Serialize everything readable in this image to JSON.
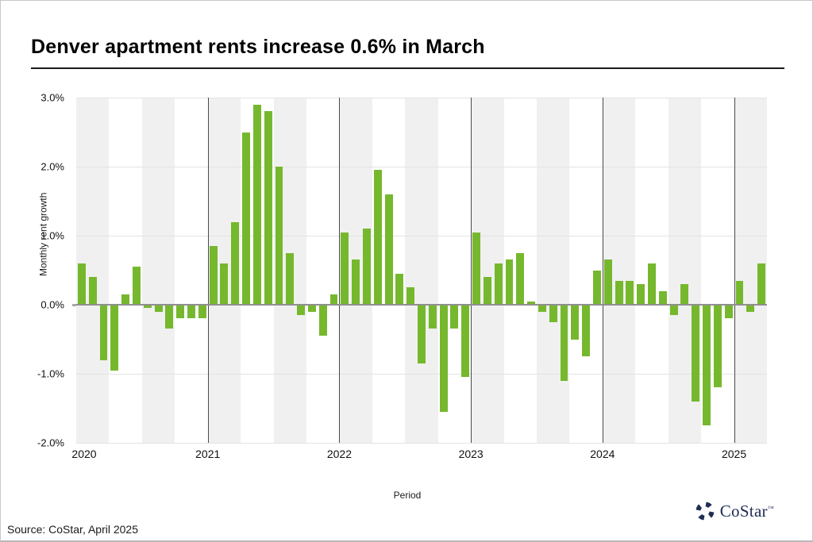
{
  "title": "Denver apartment rents increase 0.6% in March",
  "source": "Source: CoStar, April 2025",
  "logo": {
    "text": "CoStar",
    "tm": "™",
    "color": "#1f2d54"
  },
  "chart_data": {
    "type": "bar",
    "title": "Denver apartment rents increase 0.6% in March",
    "xlabel": "Period",
    "ylabel": "Monthly rent growth",
    "ylim": [
      -2.0,
      3.0
    ],
    "yticks": [
      3.0,
      2.0,
      1.0,
      0.0,
      -1.0,
      -2.0
    ],
    "ytick_labels": [
      "3.0%",
      "2.0%",
      "1.0%",
      "0.0%",
      "-1.0%",
      "-2.0%"
    ],
    "grid": "horizontal, light gray; alternating quarterly background stripes",
    "legend": "none",
    "bar_color": "#76b82d",
    "stripe_color": "#f0f0f0",
    "x_unit": "month",
    "x_start": "Jan 2020",
    "x_end": "Mar 2025",
    "year_tick_labels": [
      "2020",
      "2021",
      "2022",
      "2023",
      "2024",
      "2025"
    ],
    "series": [
      {
        "year": "2020",
        "monthly_rent_growth_pct": [
          0.6,
          0.4,
          -0.8,
          -0.95,
          0.15,
          0.55,
          -0.05,
          -0.1,
          -0.35,
          -0.2,
          -0.2,
          -0.2
        ]
      },
      {
        "year": "2021",
        "monthly_rent_growth_pct": [
          0.85,
          0.6,
          1.2,
          2.5,
          2.9,
          2.8,
          2.0,
          0.75,
          -0.15,
          -0.1,
          -0.45,
          0.15
        ]
      },
      {
        "year": "2022",
        "monthly_rent_growth_pct": [
          1.05,
          0.65,
          1.1,
          1.95,
          1.6,
          0.45,
          0.25,
          -0.85,
          -0.35,
          -1.55,
          -0.35,
          -1.05
        ]
      },
      {
        "year": "2023",
        "monthly_rent_growth_pct": [
          1.05,
          0.4,
          0.6,
          0.65,
          0.75,
          0.05,
          -0.1,
          -0.25,
          -1.1,
          -0.5,
          -0.75,
          0.5
        ]
      },
      {
        "year": "2024",
        "monthly_rent_growth_pct": [
          0.65,
          0.35,
          0.35,
          0.3,
          0.6,
          0.2,
          -0.15,
          0.3,
          -1.4,
          -1.75,
          -1.2,
          -0.2
        ]
      },
      {
        "year": "2025",
        "monthly_rent_growth_pct": [
          0.35,
          -0.1,
          0.6
        ]
      }
    ]
  }
}
